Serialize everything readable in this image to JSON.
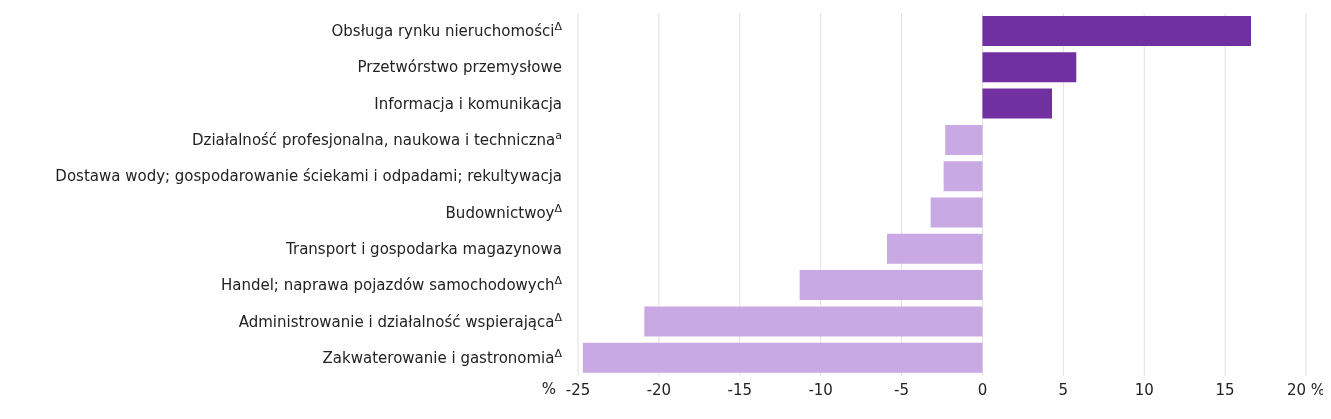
{
  "chart_data": {
    "type": "bar",
    "orientation": "horizontal",
    "xlabel": "%",
    "categories": [
      "Obsługa rynku nieruchomości$^{Δ}$",
      "Przetwórstwo przemysłowe",
      "Informacja i komunikacja",
      "Działalność profesjonalna, naukowa i techniczna$^{a}$",
      "Dostawa wody; gospodarowanie ściekami i odpadami; rekultywacja",
      "Budownictwoy$^{Δ}$",
      "Transport i gospodarka magazynowa",
      "Handel; naprawa pojazdów samochodowych$^{Δ}$",
      "Administrowanie i działalność wspierająca$^{Δ}$",
      "Zakwaterowanie i gastronomia$^{Δ}$"
    ],
    "values": [
      16.6,
      5.8,
      4.3,
      -2.3,
      -2.4,
      -3.2,
      -5.9,
      -11.3,
      -20.9,
      -24.7
    ],
    "colors": [
      "#7030a0",
      "#7030a0",
      "#7030a0",
      "#c9a9e3",
      "#c9a9e3",
      "#c9a9e3",
      "#c9a9e3",
      "#c9a9e3",
      "#c9a9e3",
      "#c9a9e3"
    ],
    "xlim": [
      -25,
      20
    ],
    "xticks": [
      -25,
      -20,
      -15,
      -10,
      -5,
      0,
      5,
      10,
      15,
      {
        "value": 20,
        "label": "20 %"
      }
    ],
    "grid": "x"
  }
}
